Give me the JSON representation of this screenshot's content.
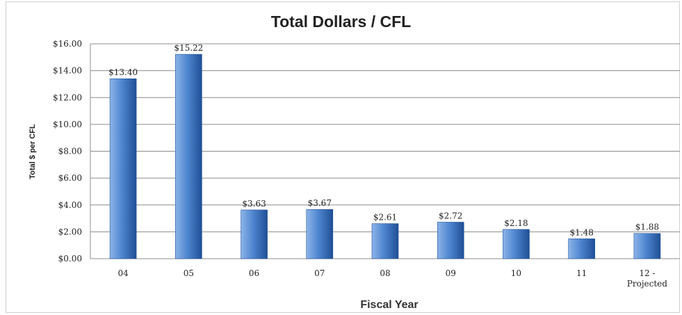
{
  "chart_data": {
    "type": "bar",
    "title": "Total Dollars / CFL",
    "xlabel": "Fiscal Year",
    "ylabel": "Total $ per CFL",
    "categories": [
      [
        "04"
      ],
      [
        "05"
      ],
      [
        "06"
      ],
      [
        "07"
      ],
      [
        "08"
      ],
      [
        "09"
      ],
      [
        "10"
      ],
      [
        "11"
      ],
      [
        "12 -",
        "Projected"
      ]
    ],
    "values": [
      13.4,
      15.22,
      3.63,
      3.67,
      2.61,
      2.72,
      2.18,
      1.48,
      1.88
    ],
    "data_labels": [
      "$13.40",
      "$15.22",
      "$3.63",
      "$3.67",
      "$2.61",
      "$2.72",
      "$2.18",
      "$1.48",
      "$1.88"
    ],
    "ylim": [
      0,
      16
    ],
    "yticks": [
      0,
      2,
      4,
      6,
      8,
      10,
      12,
      14,
      16
    ],
    "ytick_labels": [
      "$0.00",
      "$2.00",
      "$4.00",
      "$6.00",
      "$8.00",
      "$10.00",
      "$12.00",
      "$14.00",
      "$16.00"
    ],
    "grid": true,
    "legend": "none",
    "colors": {
      "bar_light": "#8cb4e8",
      "bar_mid": "#4f86d0",
      "bar_dark": "#1f4f96",
      "grid": "#8c8c8c"
    }
  }
}
